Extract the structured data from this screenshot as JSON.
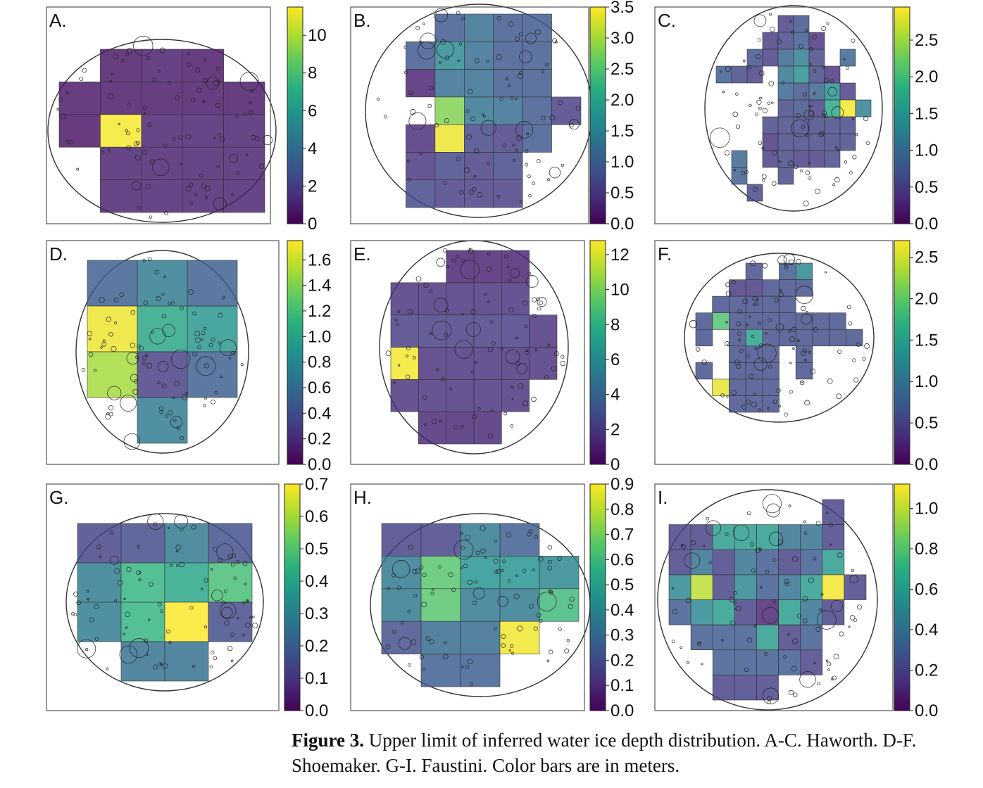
{
  "caption": {
    "label": "Figure 3.",
    "text": "Upper limit of inferred water ice depth distribution. A-C. Haworth. D-F. Shoemaker. G-I. Faustini. Color bars are in meters."
  },
  "colors": {
    "low": "#440154",
    "mid": "#21918c",
    "high": "#fde725",
    "outline": "#333333",
    "frame": "#555555"
  },
  "chart_data": [
    {
      "type": "heatmap",
      "panel": "A.",
      "crater": "Haworth",
      "colorbar_ticks": [
        "0",
        "2",
        "4",
        "6",
        "8",
        "10"
      ],
      "vmax": 11.5,
      "grid": [
        [
          null,
          0.6,
          0.8,
          0.6,
          null
        ],
        [
          0.6,
          0.6,
          0.6,
          0.6,
          0.6
        ],
        [
          0.5,
          11.4,
          0.9,
          0.9,
          0.9
        ],
        [
          null,
          0.9,
          0.9,
          0.9,
          0.9
        ],
        [
          null,
          0.9,
          0.9,
          0.9,
          0.9
        ]
      ]
    },
    {
      "type": "heatmap",
      "panel": "B.",
      "crater": "Haworth",
      "colorbar_ticks": [
        "0.0",
        "0.5",
        "1.0",
        "1.5",
        "2.0",
        "2.5",
        "3.0",
        "3.5"
      ],
      "vmax": 3.5,
      "grid": [
        [
          null,
          null,
          0.9,
          1.2,
          0.9,
          0.9,
          null
        ],
        [
          null,
          0.9,
          1.6,
          1.2,
          0.9,
          0.9,
          null
        ],
        [
          null,
          0.3,
          1.2,
          1.2,
          0.9,
          0.9,
          null
        ],
        [
          null,
          null,
          2.8,
          1.3,
          1.2,
          0.9,
          0.6
        ],
        [
          null,
          0.4,
          3.4,
          0.7,
          0.6,
          0.9,
          null
        ],
        [
          null,
          0.5,
          0.7,
          0.6,
          0.7,
          null,
          null
        ],
        [
          null,
          0.7,
          0.6,
          0.6,
          0.6,
          null,
          null
        ]
      ]
    },
    {
      "type": "heatmap",
      "panel": "C.",
      "crater": "Haworth",
      "colorbar_ticks": [
        "0.0",
        "0.5",
        "1.0",
        "1.5",
        "2.0",
        "2.5"
      ],
      "vmax": 2.95,
      "grid": [
        [
          null,
          null,
          null,
          null,
          0.5,
          0.7,
          null,
          null,
          null,
          null
        ],
        [
          null,
          null,
          null,
          0.5,
          0.6,
          0.8,
          0.4,
          null,
          null,
          null
        ],
        [
          null,
          null,
          0.7,
          0.5,
          0.9,
          1.2,
          0.6,
          null,
          0.9,
          null
        ],
        [
          0.8,
          0.6,
          0.5,
          null,
          1.1,
          1.4,
          0.6,
          0.4,
          null,
          null
        ],
        [
          null,
          null,
          null,
          null,
          0.9,
          0.7,
          0.9,
          1.4,
          0.5,
          null
        ],
        [
          null,
          null,
          null,
          null,
          0.6,
          0.7,
          0.5,
          1.7,
          2.9,
          1.2
        ],
        [
          null,
          null,
          null,
          0.6,
          0.6,
          0.6,
          0.6,
          0.6,
          0.6,
          null
        ],
        [
          null,
          null,
          null,
          0.4,
          0.6,
          0.6,
          0.6,
          0.6,
          0.6,
          null
        ],
        [
          null,
          0.9,
          null,
          0.5,
          0.6,
          0.5,
          0.5,
          0.6,
          null,
          null
        ],
        [
          null,
          0.8,
          null,
          null,
          0.6,
          null,
          null,
          null,
          null,
          null
        ],
        [
          null,
          null,
          0.6,
          null,
          null,
          null,
          null,
          null,
          null,
          null
        ]
      ]
    },
    {
      "type": "heatmap",
      "panel": "D.",
      "crater": "Shoemaker",
      "colorbar_ticks": [
        "0.0",
        "0.2",
        "0.4",
        "0.6",
        "0.8",
        "1.0",
        "1.2",
        "1.4",
        "1.6"
      ],
      "vmax": 1.75,
      "grid": [
        [
          0.5,
          0.7,
          0.5
        ],
        [
          1.7,
          1.0,
          0.9
        ],
        [
          1.5,
          0.3,
          0.5
        ],
        [
          null,
          0.7,
          null
        ]
      ]
    },
    {
      "type": "heatmap",
      "panel": "E.",
      "crater": "Shoemaker",
      "colorbar_ticks": [
        "0",
        "2",
        "4",
        "6",
        "8",
        "10",
        "12"
      ],
      "vmax": 12.8,
      "grid": [
        [
          null,
          null,
          1.1,
          1.1,
          1.1,
          null
        ],
        [
          1.6,
          1.6,
          1.6,
          1.6,
          1.6,
          null
        ],
        [
          2.2,
          2.2,
          2.2,
          2.2,
          2.2,
          1.6
        ],
        [
          12.6,
          1.6,
          1.6,
          1.6,
          1.6,
          1.6
        ],
        [
          1.6,
          1.6,
          1.6,
          1.6,
          1.6,
          null
        ],
        [
          null,
          1.3,
          1.3,
          1.3,
          null,
          null
        ]
      ]
    },
    {
      "type": "heatmap",
      "panel": "F.",
      "crater": "Shoemaker",
      "colorbar_ticks": [
        "0.0",
        "0.5",
        "1.0",
        "1.5",
        "2.0",
        "2.5"
      ],
      "vmax": 2.7,
      "grid": [
        [
          null,
          null,
          null,
          0.6,
          null,
          0.7,
          1.2,
          null,
          null,
          null
        ],
        [
          null,
          null,
          0.4,
          0.4,
          0.6,
          0.6,
          0.6,
          null,
          null,
          null
        ],
        [
          null,
          0.6,
          0.6,
          0.6,
          0.6,
          0.6,
          null,
          null,
          null,
          null
        ],
        [
          0.6,
          1.9,
          0.6,
          0.6,
          0.6,
          0.6,
          0.6,
          0.6,
          0.6,
          null
        ],
        [
          0.6,
          null,
          0.6,
          1.5,
          0.6,
          0.6,
          0.6,
          0.6,
          0.6,
          0.6
        ],
        [
          null,
          null,
          0.6,
          0.6,
          0.6,
          null,
          0.6,
          null,
          null,
          null
        ],
        [
          0.6,
          null,
          0.6,
          0.6,
          0.6,
          null,
          0.6,
          null,
          null,
          null
        ],
        [
          null,
          2.6,
          0.6,
          0.6,
          0.6,
          null,
          null,
          null,
          null,
          null
        ],
        [
          null,
          null,
          0.6,
          0.6,
          0.6,
          null,
          null,
          null,
          null,
          null
        ]
      ]
    },
    {
      "type": "heatmap",
      "panel": "G.",
      "crater": "Faustini",
      "colorbar_ticks": [
        "0.0",
        "0.1",
        "0.2",
        "0.3",
        "0.4",
        "0.5",
        "0.6",
        "0.7"
      ],
      "vmax": 0.7,
      "grid": [
        [
          0.13,
          0.15,
          0.27,
          0.16
        ],
        [
          0.28,
          0.45,
          0.4,
          0.48
        ],
        [
          0.28,
          0.45,
          0.7,
          0.15
        ],
        [
          null,
          0.25,
          0.25,
          null
        ]
      ]
    },
    {
      "type": "heatmap",
      "panel": "H.",
      "crater": "Faustini",
      "colorbar_ticks": [
        "0.0",
        "0.1",
        "0.2",
        "0.3",
        "0.4",
        "0.5",
        "0.6",
        "0.7",
        "0.8",
        "0.9"
      ],
      "vmax": 0.9,
      "grid": [
        [
          0.16,
          0.16,
          0.35,
          0.25,
          null
        ],
        [
          0.35,
          0.65,
          0.45,
          0.45,
          0.4
        ],
        [
          0.35,
          0.65,
          0.35,
          0.35,
          0.6
        ],
        [
          0.2,
          0.3,
          0.3,
          0.88,
          null
        ],
        [
          null,
          0.25,
          0.25,
          null,
          null
        ]
      ]
    },
    {
      "type": "heatmap",
      "panel": "I.",
      "crater": "Faustini",
      "colorbar_ticks": [
        "0.0",
        "0.2",
        "0.4",
        "0.6",
        "0.8",
        "1.0"
      ],
      "vmax": 1.12,
      "grid": [
        [
          null,
          null,
          null,
          null,
          null,
          null,
          null,
          0.2,
          null
        ],
        [
          0.2,
          0.2,
          0.6,
          0.6,
          0.6,
          0.4,
          0.4,
          0.2,
          null
        ],
        [
          0.2,
          0.4,
          0.2,
          0.4,
          0.3,
          0.2,
          0.3,
          0.6,
          null
        ],
        [
          0.5,
          1.0,
          0.2,
          0.5,
          0.3,
          0.4,
          0.6,
          1.1,
          0.2
        ],
        [
          0.3,
          0.5,
          0.6,
          0.2,
          0.1,
          0.6,
          0.4,
          0.2,
          null
        ],
        [
          null,
          0.3,
          0.3,
          0.3,
          0.6,
          0.2,
          0.3,
          null,
          null
        ],
        [
          null,
          null,
          0.3,
          0.3,
          0.3,
          0.3,
          0.2,
          null,
          null
        ],
        [
          null,
          null,
          0.2,
          0.2,
          0.2,
          null,
          null,
          null,
          null
        ]
      ]
    }
  ]
}
